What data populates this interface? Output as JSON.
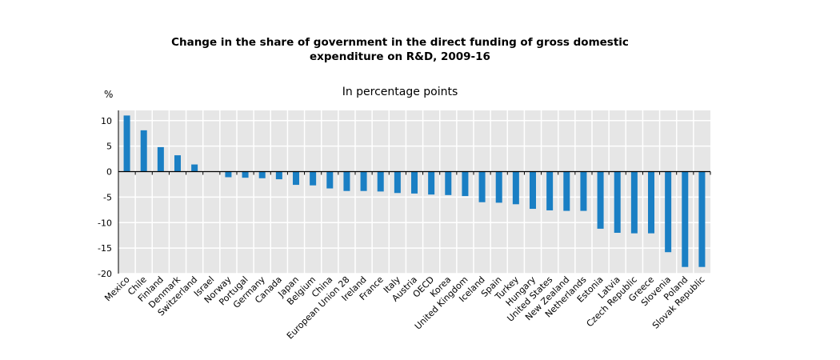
{
  "chart_data": {
    "type": "bar",
    "title": "Change in the share of government in the direct funding of gross domestic\nexpenditure on R&D, 2009-16",
    "subtitle": "In percentage points",
    "ylabel": "%",
    "xlabel": "",
    "ylim": [
      -20,
      12
    ],
    "yticks": [
      10,
      5,
      0,
      -5,
      -10,
      -15,
      -20
    ],
    "grid": true,
    "bar_color": "#1a7fc4",
    "plot_background": "#e6e6e6",
    "categories": [
      "Mexico",
      "Chile",
      "Finland",
      "Denmark",
      "Switzerland",
      "Israel",
      "Norway",
      "Portugal",
      "Germany",
      "Canada",
      "Japan",
      "Belgium",
      "China",
      "European Union 28",
      "Ireland",
      "France",
      "Italy",
      "Austria",
      "OECD",
      "Korea",
      "United Kingdom",
      "Iceland",
      "Spain",
      "Turkey",
      "Hungary",
      "United States",
      "New Zealand",
      "Netherlands",
      "Estonia",
      "Latvia",
      "Czech Republic",
      "Greece",
      "Slovenia",
      "Poland",
      "Slovak Republic"
    ],
    "values": [
      11.0,
      8.1,
      4.8,
      3.2,
      1.4,
      0.0,
      -1.1,
      -1.2,
      -1.3,
      -1.5,
      -2.6,
      -2.7,
      -3.3,
      -3.8,
      -3.8,
      -3.9,
      -4.2,
      -4.3,
      -4.5,
      -4.6,
      -4.8,
      -6.0,
      -6.1,
      -6.4,
      -7.3,
      -7.6,
      -7.7,
      -7.7,
      -11.2,
      -12.0,
      -12.1,
      -12.1,
      -15.8,
      -18.7,
      -18.7
    ]
  }
}
